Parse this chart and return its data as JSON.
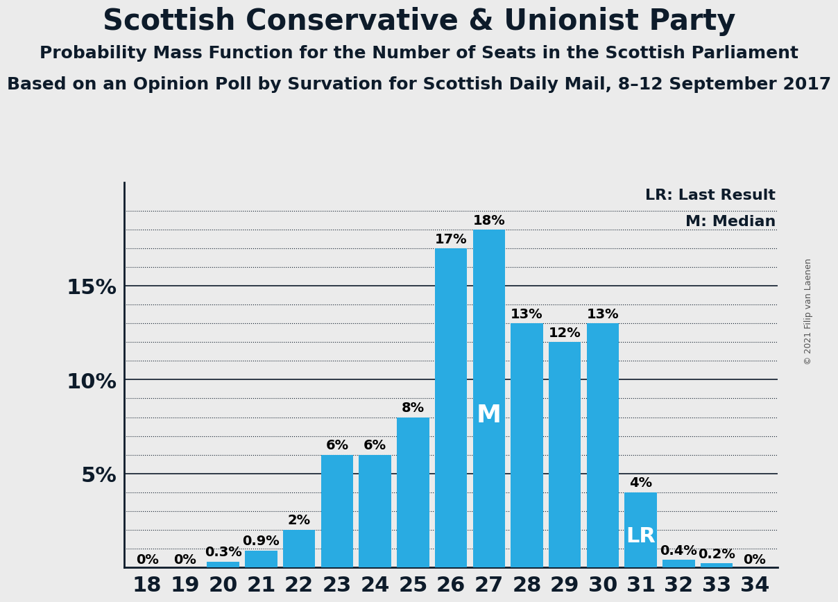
{
  "title": "Scottish Conservative & Unionist Party",
  "subtitle1": "Probability Mass Function for the Number of Seats in the Scottish Parliament",
  "subtitle2": "Based on an Opinion Poll by Survation for Scottish Daily Mail, 8–12 September 2017",
  "copyright": "© 2021 Filip van Laenen",
  "seats": [
    18,
    19,
    20,
    21,
    22,
    23,
    24,
    25,
    26,
    27,
    28,
    29,
    30,
    31,
    32,
    33,
    34
  ],
  "probabilities": [
    0.0,
    0.0,
    0.3,
    0.9,
    2.0,
    6.0,
    6.0,
    8.0,
    17.0,
    18.0,
    13.0,
    12.0,
    13.0,
    4.0,
    0.4,
    0.2,
    0.0
  ],
  "bar_labels": [
    "0%",
    "0%",
    "0.3%",
    "0.9%",
    "2%",
    "6%",
    "6%",
    "8%",
    "17%",
    "18%",
    "13%",
    "12%",
    "13%",
    "4%",
    "0.4%",
    "0.2%",
    "0%"
  ],
  "bar_color": "#29ABE2",
  "background_color": "#EBEBEB",
  "median_seat": 27,
  "lr_seat": 31,
  "legend_lr": "LR: Last Result",
  "legend_m": "M: Median",
  "solid_gridlines": [
    5.0,
    10.0,
    15.0
  ],
  "dotted_gridlines": [
    1.0,
    2.0,
    3.0,
    4.0,
    6.0,
    7.0,
    8.0,
    9.0,
    11.0,
    12.0,
    13.0,
    14.0,
    16.0,
    17.0,
    18.0,
    19.0
  ],
  "title_fontsize": 30,
  "subtitle_fontsize": 18,
  "label_fontsize": 14,
  "tick_fontsize": 22,
  "legend_fontsize": 16
}
